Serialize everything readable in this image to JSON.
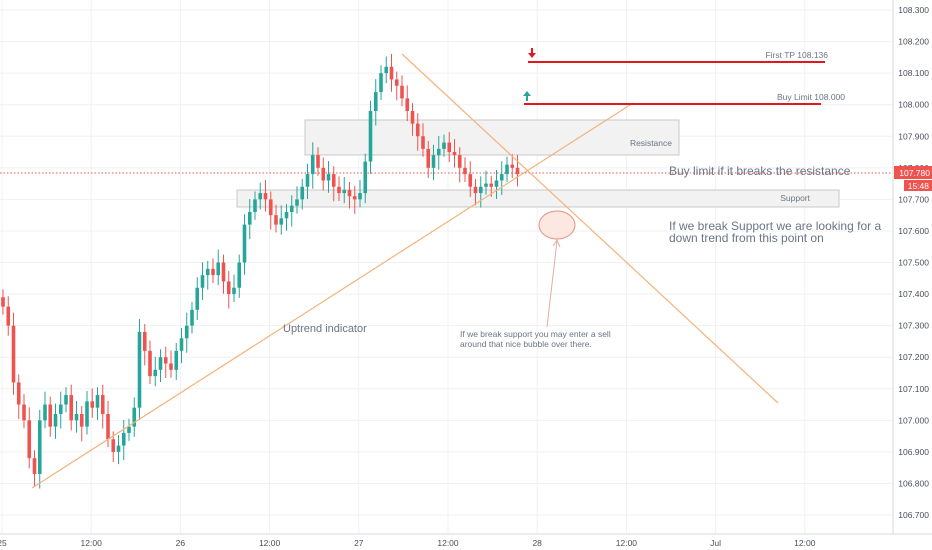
{
  "colors": {
    "up": "#26a69a",
    "down": "#ef5350",
    "trendline": "#f5b27a",
    "target_line": "#e0191f",
    "buy_arrow": "#26a69a",
    "tp_arrow": "#e0191f",
    "zone_fill": "#f2f2f2",
    "zone_border": "#c8c8c8",
    "grid": "#eef1f5",
    "axis_text": "#4a4f5c",
    "note_text": "#6b7585",
    "price_line": "#ef5350",
    "bubble_fill": "#fde7e1",
    "bubble_stroke": "#e3927f"
  },
  "price_axis": {
    "ticks": [
      "108.300",
      "108.200",
      "108.100",
      "108.000",
      "107.900",
      "107.800",
      "107.700",
      "107.600",
      "107.500",
      "107.400",
      "107.300",
      "107.200",
      "107.100",
      "107.000",
      "106.900",
      "106.800",
      "106.700"
    ],
    "last_price_label": "107.780",
    "countdown_label": "15:48"
  },
  "time_axis": {
    "labels": [
      "25",
      "12:00",
      "26",
      "12:00",
      "27",
      "12:00",
      "28",
      "12:00",
      "Jul",
      "12:00"
    ]
  },
  "annotations": {
    "first_tp": "First TP 108.136",
    "buy_limit": "Buy Limit 108.000",
    "resistance": "Resistance",
    "support": "Support",
    "buy_note": "Buy limit if it breaks the resistance",
    "support_note_line1": "If we break Support we are looking for a",
    "support_note_line2": "down trend from this point on",
    "uptrend": "Uptrend indicator",
    "sell_note_line1": "If we break support you may enter a sell",
    "sell_note_line2": "around that nice bubble over there."
  },
  "chart_data": {
    "type": "candlestick",
    "instrument_unit": "price",
    "x_labels": [
      "25",
      "12:00",
      "26",
      "12:00",
      "27",
      "12:00",
      "28",
      "12:00",
      "Jul",
      "12:00"
    ],
    "ylim": [
      106.65,
      108.33
    ],
    "y_ticks": [
      108.3,
      108.2,
      108.1,
      108.0,
      107.9,
      107.8,
      107.7,
      107.6,
      107.5,
      107.4,
      107.3,
      107.2,
      107.1,
      107.0,
      106.9,
      106.8,
      106.7
    ],
    "last_price": 107.78,
    "levels": {
      "first_tp": 108.136,
      "buy_limit": 108.0
    },
    "zones": {
      "resistance": [
        107.84,
        107.95
      ],
      "support": [
        107.675,
        107.725
      ]
    },
    "candle_closes": [
      107.36,
      107.3,
      107.12,
      107.05,
      107.0,
      106.88,
      106.83,
      107.0,
      107.05,
      106.98,
      107.02,
      107.05,
      107.08,
      107.0,
      107.02,
      106.98,
      107.06,
      107.04,
      107.08,
      107.02,
      106.94,
      106.9,
      106.92,
      106.96,
      106.98,
      107.04,
      107.28,
      107.22,
      107.14,
      107.16,
      107.2,
      107.18,
      107.16,
      107.22,
      107.26,
      107.3,
      107.35,
      107.42,
      107.46,
      107.48,
      107.46,
      107.5,
      107.44,
      107.4,
      107.42,
      107.5,
      107.62,
      107.66,
      107.7,
      107.72,
      107.7,
      107.65,
      107.62,
      107.64,
      107.66,
      107.68,
      107.7,
      107.74,
      107.78,
      107.84,
      107.8,
      107.76,
      107.78,
      107.74,
      107.72,
      107.73,
      107.71,
      107.7,
      107.72,
      107.82,
      107.98,
      108.04,
      108.1,
      108.12,
      108.08,
      108.06,
      108.02,
      107.98,
      107.94,
      107.9,
      107.86,
      107.8,
      107.84,
      107.86,
      107.88,
      107.85,
      107.84,
      107.8,
      107.78,
      107.74,
      107.72,
      107.74,
      107.75,
      107.74,
      107.76,
      107.78,
      107.81,
      107.8,
      107.78
    ]
  }
}
